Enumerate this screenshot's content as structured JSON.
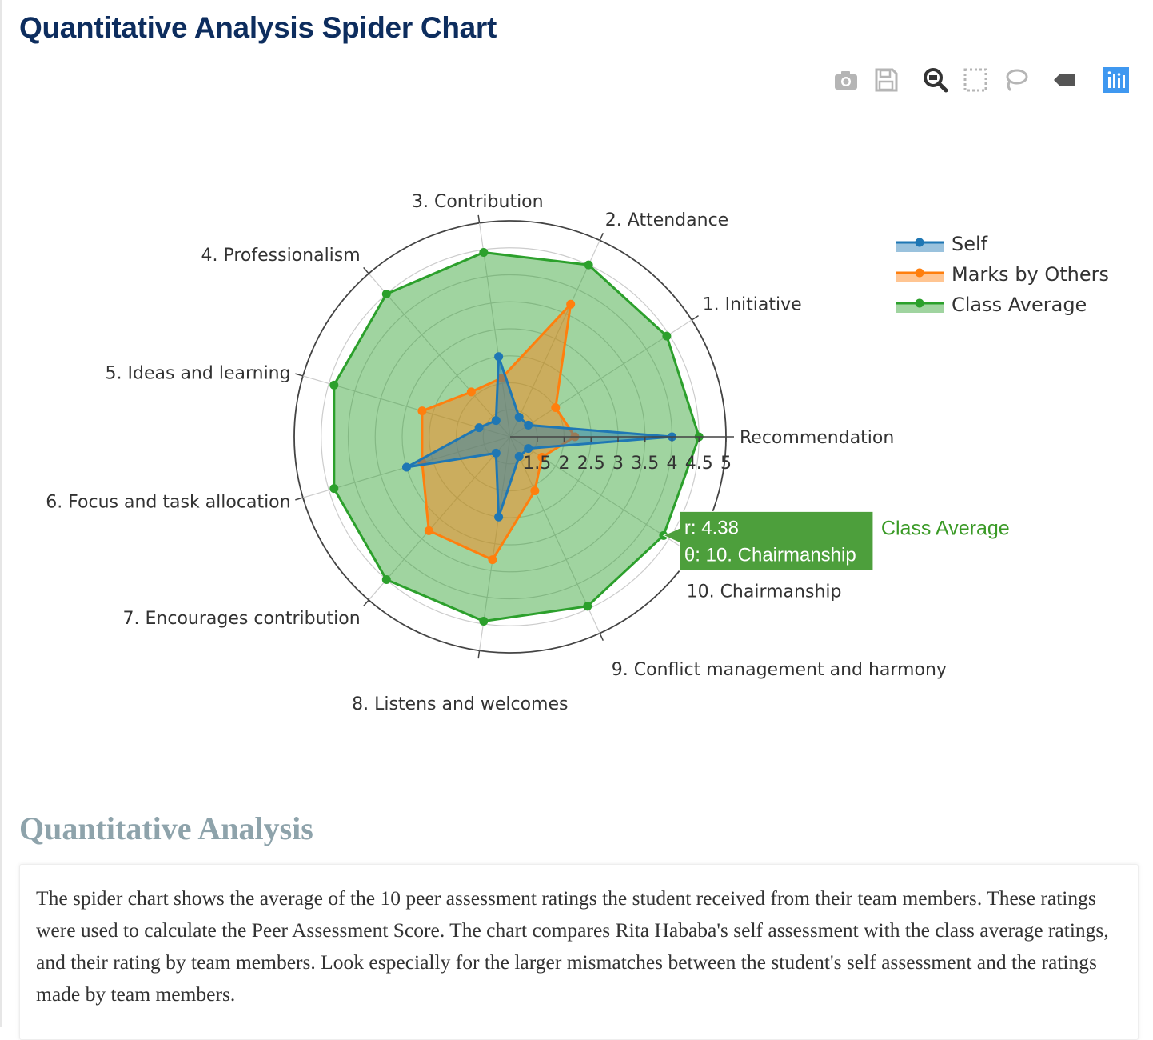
{
  "page": {
    "title": "Quantitative Analysis Spider Chart",
    "section_heading": "Quantitative Analysis",
    "description": "The spider chart shows the average of the 10 peer assessment ratings the student received from their team members. These ratings were used to calculate the Peer Assessment Score. The chart compares Rita Hababa's self assessment with the class average ratings, and their rating by team members. Look especially for the larger mismatches between the student's self assessment and the ratings made by team members."
  },
  "modebar": {
    "buttons": [
      {
        "icon": "camera-icon"
      },
      {
        "icon": "save-icon"
      },
      {
        "icon": "zoom-icon"
      },
      {
        "icon": "box-select-icon"
      },
      {
        "icon": "lasso-icon"
      },
      {
        "icon": "pan-tag-icon"
      },
      {
        "icon": "plotly-logo-icon"
      }
    ],
    "colors": {
      "icon": "#b5b5b5",
      "icon_active": "#333333",
      "logo": "#3f98f0"
    }
  },
  "chart_data": {
    "type": "radar",
    "title": "",
    "categories": [
      "Recommendation",
      "1. Initiative",
      "2. Attendance",
      "3. Contribution",
      "4. Professionalism",
      "5. Ideas and learning",
      "6. Focus and task allocation",
      "7. Encourages contribution",
      "8. Listens and welcomes",
      "9. Conflict management and harmony",
      "10. Chairmanship"
    ],
    "radial_range": [
      1,
      5
    ],
    "radial_ticks": [
      "1.5",
      "2",
      "2.5",
      "3",
      "3.5",
      "4",
      "4.5",
      "5"
    ],
    "radial_tick_values": [
      1.5,
      2,
      2.5,
      3,
      3.5,
      4,
      4.5,
      5
    ],
    "grid": true,
    "legend_position": "top-right",
    "series": [
      {
        "name": "Self",
        "color": "#1f77b4",
        "values": [
          4.0,
          1.4,
          1.4,
          2.5,
          1.4,
          1.6,
          3.0,
          1.4,
          2.5,
          1.4,
          1.4
        ]
      },
      {
        "name": "Marks by Others",
        "color": "#ff7f0e",
        "values": [
          2.2,
          2.0,
          3.7,
          2.1,
          2.1,
          2.7,
          2.7,
          3.3,
          3.3,
          2.1,
          1.7
        ]
      },
      {
        "name": "Class Average",
        "color": "#2ca02c",
        "values": [
          4.5,
          4.45,
          4.5,
          4.45,
          4.5,
          4.4,
          4.4,
          4.5,
          4.45,
          4.45,
          4.38
        ]
      }
    ],
    "hover": {
      "series": "Class Average",
      "r_text": "r: 4.38",
      "theta_text": "θ: 10. Chairmanship",
      "name": "Class Average",
      "bg_color": "#4d9f3c",
      "name_color": "#3a9a26"
    }
  }
}
